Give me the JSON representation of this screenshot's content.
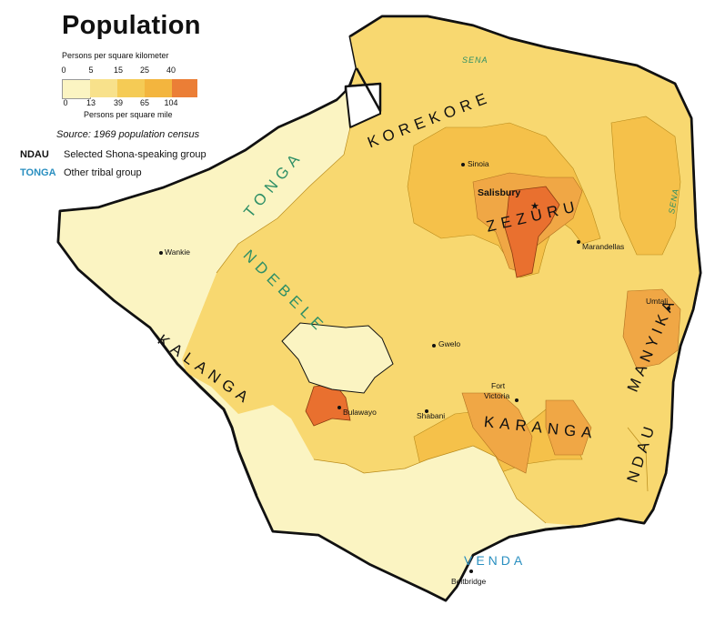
{
  "title": "Population",
  "legend": {
    "top_label": "Persons per square kilometer",
    "top_ticks": [
      "0",
      "5",
      "15",
      "25",
      "40"
    ],
    "bottom_label": "Persons per square mile",
    "bottom_ticks": [
      "0",
      "13",
      "39",
      "65",
      "104"
    ],
    "colors": [
      "#fbf4c2",
      "#f8e18b",
      "#f5cb55",
      "#f3b53e",
      "#eb7e36"
    ],
    "source": "Source: 1969 population census",
    "key_shona_code": "NDAU",
    "key_shona_text": "Selected Shona-speaking group",
    "key_other_code": "TONGA",
    "key_other_text": "Other tribal group",
    "key_other_color": "#2a8fc0"
  },
  "cities": {
    "sinoia": "Sinoia",
    "salisbury": "Salisbury",
    "marandellas": "Marandellas",
    "wankie": "Wankie",
    "umtali": "Umtali",
    "gwelo": "Gwelo",
    "fort_victoria_1": "Fort",
    "fort_victoria_2": "Victoria",
    "shabani": "Shabani",
    "bulawayo": "Bulawayo",
    "beitbridge": "Beitbridge"
  },
  "groups": {
    "korekore": "KOREKORE",
    "zezuru": "ZEZURU",
    "manyika": "MANYIKA",
    "karanga": "KARANGA",
    "ndau": "NDAU",
    "kalanga": "KALANGA",
    "ndebele": "NDEBELE",
    "tonga": "TONGA",
    "venda": "VENDA",
    "sena_north": "SENA",
    "sena_east": "SENA"
  }
}
